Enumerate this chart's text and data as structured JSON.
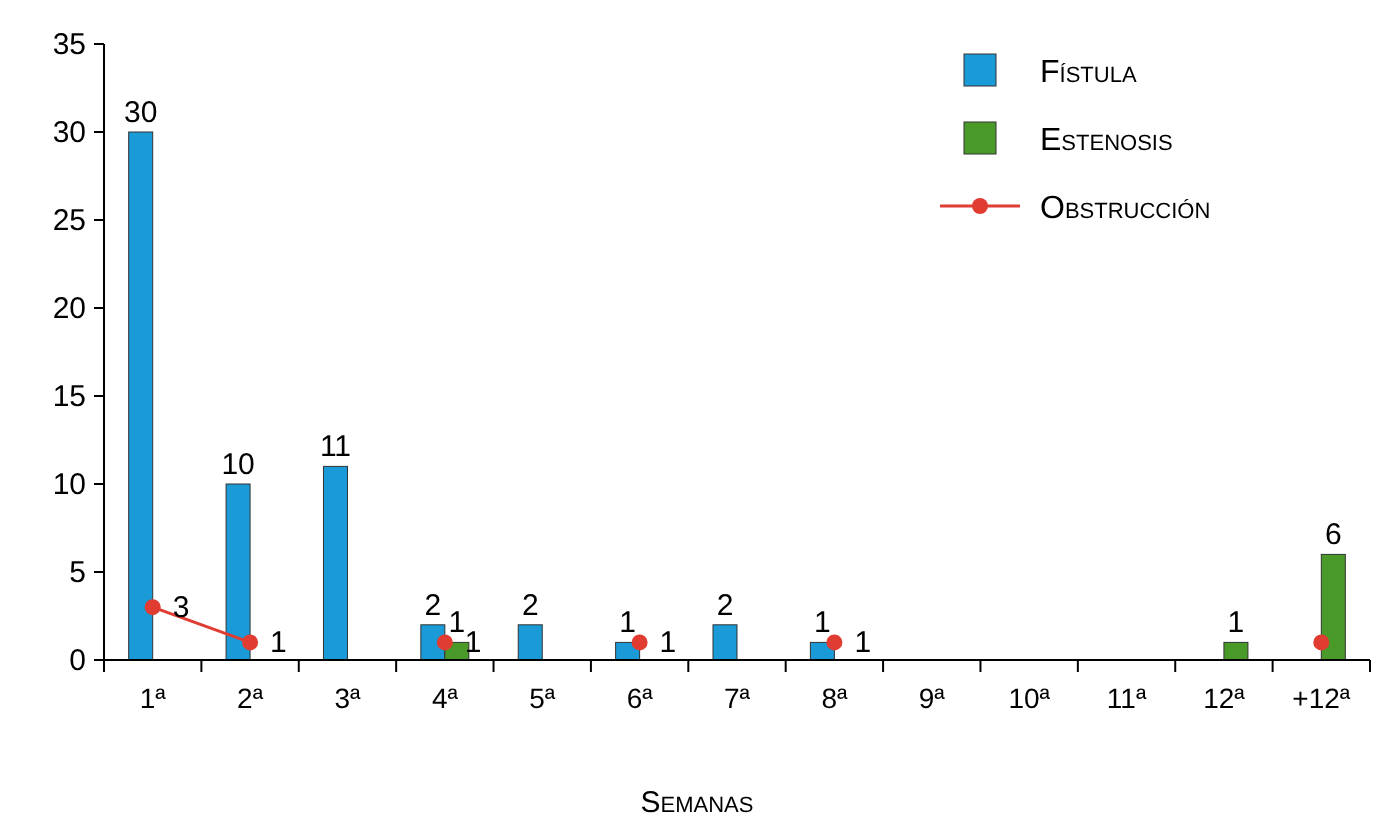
{
  "chart_data": {
    "type": "bar",
    "xlabel": "Semanas",
    "categories": [
      "1ª",
      "2ª",
      "3ª",
      "4ª",
      "5ª",
      "6ª",
      "7ª",
      "8ª",
      "9ª",
      "10ª",
      "11ª",
      "12ª",
      "+12ª"
    ],
    "series": [
      {
        "name": "Fístula",
        "color": "#1a9ad6",
        "values": [
          30,
          10,
          11,
          2,
          2,
          1,
          2,
          1,
          null,
          null,
          null,
          null,
          null
        ],
        "value_labels": [
          "30",
          "10",
          "11",
          "2",
          "2",
          "1",
          "2",
          "1",
          null,
          null,
          null,
          null,
          null
        ]
      },
      {
        "name": "Estenosis",
        "color": "#4a9a2a",
        "values": [
          null,
          null,
          null,
          1,
          null,
          null,
          null,
          null,
          null,
          null,
          null,
          1,
          6
        ],
        "value_labels": [
          null,
          null,
          null,
          "1",
          null,
          null,
          null,
          null,
          null,
          null,
          null,
          "1",
          "6"
        ]
      },
      {
        "name": "Obstrucción",
        "type": "line",
        "color": "#e03c31",
        "values": [
          3,
          1,
          null,
          1,
          null,
          1,
          null,
          1,
          null,
          null,
          null,
          null,
          1
        ],
        "value_labels": [
          "3",
          "1",
          null,
          "1",
          null,
          "1",
          null,
          "1",
          null,
          null,
          null,
          null,
          null
        ]
      }
    ],
    "ylim": [
      0,
      35
    ],
    "yticks": [
      0,
      5,
      10,
      15,
      20,
      25,
      30,
      35
    ],
    "grid": false,
    "legend": "top right",
    "marker": "circle"
  }
}
